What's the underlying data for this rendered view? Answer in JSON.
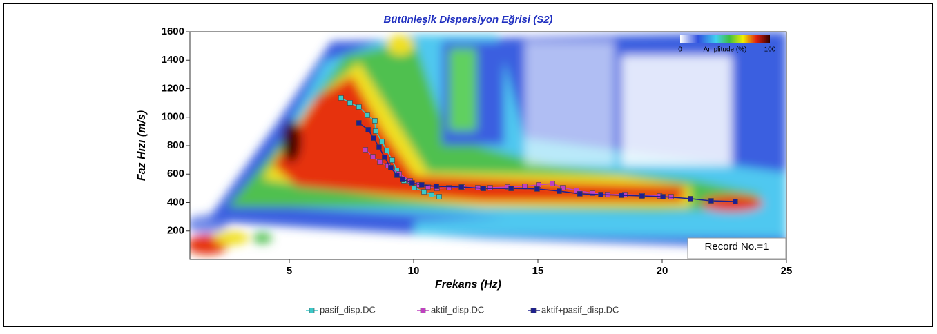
{
  "chart_data": {
    "type": "line",
    "title": "Bütünleşik Dispersiyon Eğrisi (S2)",
    "x_label": "Frekans (Hz)",
    "y_label": "Faz Hızı (m/s)",
    "xlim": [
      1,
      25
    ],
    "ylim": [
      0,
      1600
    ],
    "xticks": [
      5,
      10,
      15,
      20,
      25
    ],
    "yticks": [
      200,
      400,
      600,
      800,
      1000,
      1200,
      1400,
      1600
    ],
    "annotation": "Record No.=1",
    "colorbar": {
      "label": "Amplitude (%)",
      "ticks": [
        0,
        100
      ]
    },
    "series": [
      {
        "name": "pasif_disp.DC",
        "color": "#3cc8c8",
        "x": [
          7.08,
          7.44,
          7.8,
          8.14,
          8.44,
          8.47,
          8.72,
          8.92,
          9.14,
          9.33,
          9.61,
          10.03,
          10.42,
          10.72,
          11.03
        ],
        "values": [
          1135,
          1101,
          1072,
          1013,
          975,
          902,
          829,
          766,
          698,
          625,
          553,
          504,
          475,
          456,
          441
        ]
      },
      {
        "name": "aktif_disp.DC",
        "color": "#c040c0",
        "x": [
          8.06,
          8.36,
          8.64,
          8.97,
          9.42,
          9.86,
          10.22,
          10.58,
          10.94,
          11.42,
          11.97,
          12.58,
          13.08,
          13.78,
          14.47,
          15.03,
          15.58,
          16.0,
          16.56,
          17.2,
          17.8,
          18.5,
          19.2,
          19.9,
          20.36
        ],
        "values": [
          771,
          722,
          684,
          659,
          601,
          553,
          524,
          509,
          499,
          504,
          509,
          504,
          504,
          509,
          514,
          524,
          533,
          504,
          485,
          465,
          456,
          456,
          451,
          446,
          441
        ]
      },
      {
        "name": "aktif+pasif_disp.DC",
        "color": "#1e2090",
        "x": [
          7.8,
          8.17,
          8.39,
          8.61,
          8.83,
          9.08,
          9.33,
          9.56,
          9.94,
          10.33,
          10.92,
          11.92,
          12.81,
          13.92,
          14.97,
          15.86,
          16.69,
          17.53,
          18.36,
          19.19,
          20.03,
          21.14,
          21.97,
          22.94
        ],
        "values": [
          960,
          912,
          853,
          790,
          718,
          645,
          592,
          562,
          538,
          524,
          514,
          509,
          499,
          499,
          495,
          480,
          461,
          456,
          451,
          446,
          441,
          427,
          412,
          407
        ]
      }
    ]
  }
}
